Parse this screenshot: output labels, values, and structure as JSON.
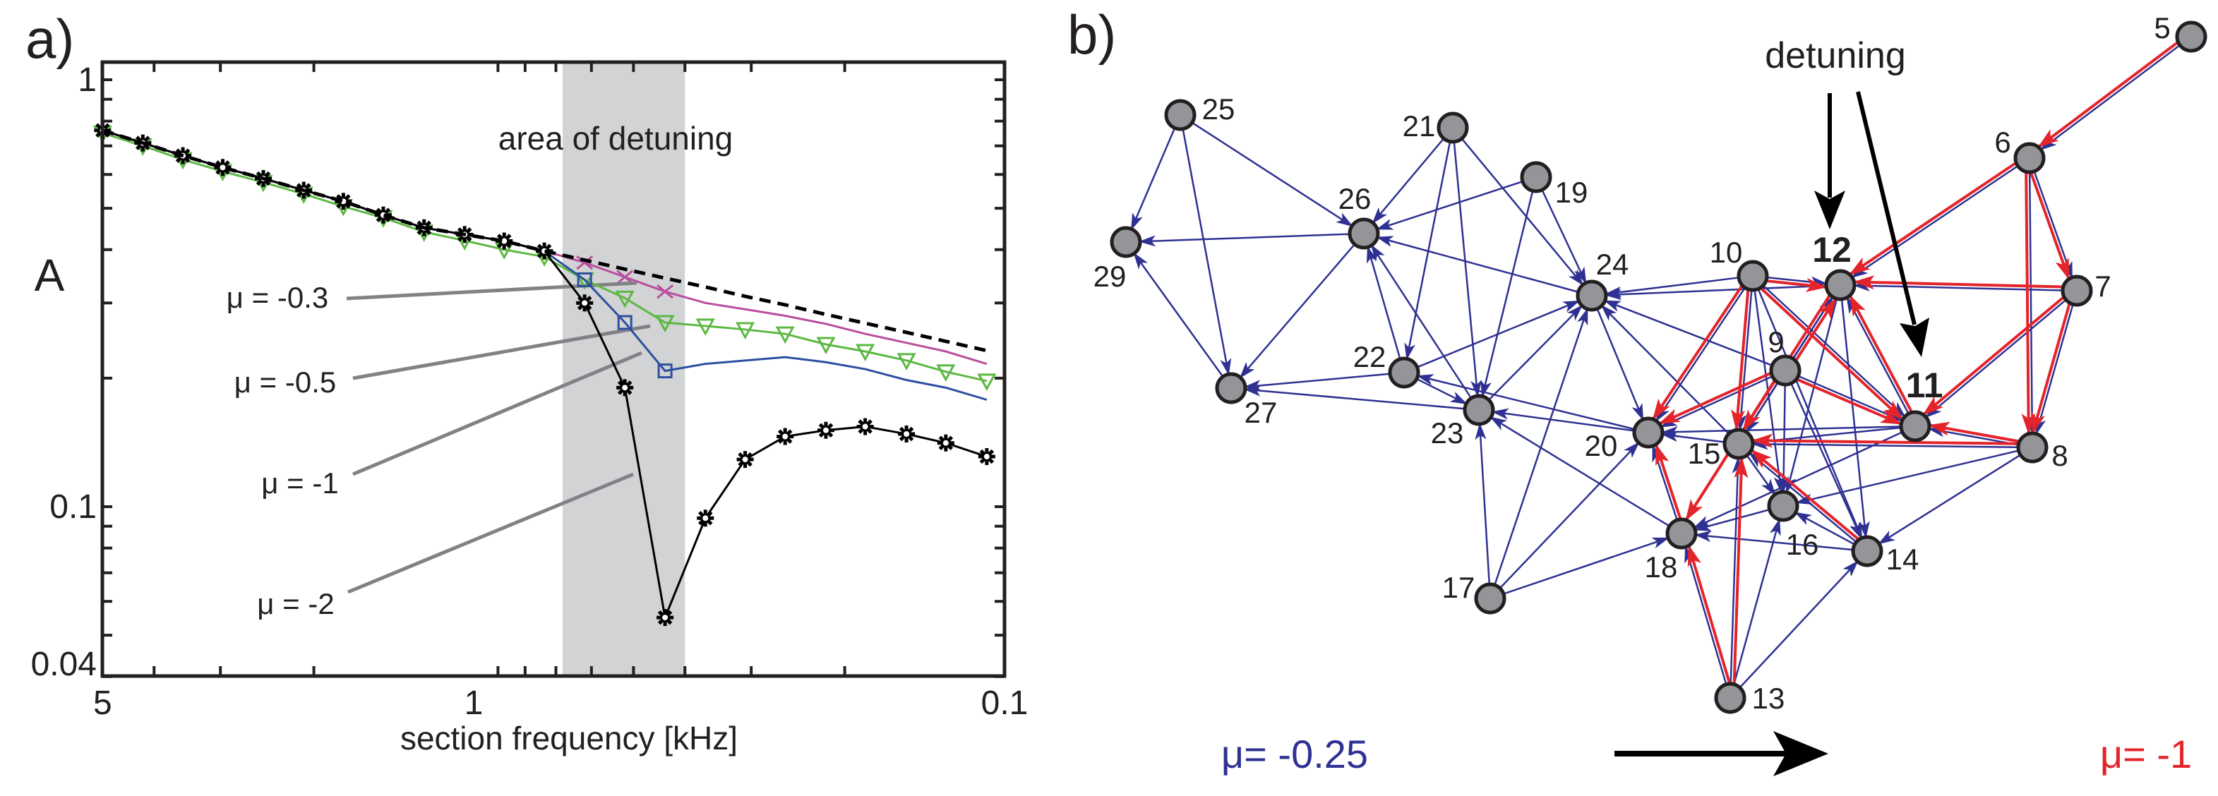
{
  "panels": {
    "a_label": "a)",
    "b_label": "b)"
  },
  "chart_data": {
    "type": "line",
    "title": "",
    "xlabel": "section frequency [kHz]",
    "ylabel": "A",
    "xscale": "log",
    "yscale": "log",
    "x_reversed": true,
    "xlim": [
      5,
      0.1
    ],
    "ylim": [
      0.04,
      1.1
    ],
    "grid": false,
    "xticks": [
      {
        "value": 5,
        "label": "5"
      },
      {
        "value": 1,
        "label": "1"
      },
      {
        "value": 0.1,
        "label": "0.1"
      }
    ],
    "yticks": [
      {
        "value": 1,
        "label": "1"
      },
      {
        "value": 0.1,
        "label": "0.1"
      },
      {
        "value": 0.04,
        "label": "0.04"
      }
    ],
    "shaded_region": {
      "from": 0.68,
      "to": 0.4,
      "label": "area of detuning",
      "color": "#d1d3d4"
    },
    "x": [
      5.0,
      4.2,
      3.53,
      2.97,
      2.49,
      2.09,
      1.76,
      1.48,
      1.24,
      1.04,
      0.876,
      0.736,
      0.618,
      0.519,
      0.436,
      0.366,
      0.308,
      0.259,
      0.217,
      0.183,
      0.153,
      0.129,
      0.108
    ],
    "series": [
      {
        "label": "μ = -0.3",
        "color": "#b94f9e",
        "marker": "x",
        "marker_indices": [
          12,
          13,
          14
        ],
        "values": [
          0.761,
          0.711,
          0.664,
          0.623,
          0.587,
          0.551,
          0.519,
          0.482,
          0.45,
          0.434,
          0.419,
          0.397,
          0.373,
          0.345,
          0.319,
          0.3,
          0.29,
          0.28,
          0.268,
          0.254,
          0.242,
          0.231,
          0.216
        ]
      },
      {
        "label": "μ = -0.5",
        "color": "#5db843",
        "marker": "triangle-down",
        "marker_indices": "all",
        "values": [
          0.75,
          0.7,
          0.65,
          0.61,
          0.575,
          0.54,
          0.505,
          0.475,
          0.44,
          0.42,
          0.4,
          0.385,
          0.34,
          0.308,
          0.27,
          0.265,
          0.26,
          0.254,
          0.24,
          0.231,
          0.22,
          0.207,
          0.197
        ]
      },
      {
        "label": "μ = -1",
        "color": "#2e4fa0",
        "marker": "square",
        "marker_indices": [
          12,
          13,
          14
        ],
        "values": [
          0.761,
          0.711,
          0.664,
          0.623,
          0.587,
          0.551,
          0.519,
          0.482,
          0.45,
          0.434,
          0.419,
          0.397,
          0.34,
          0.27,
          0.208,
          0.216,
          0.22,
          0.224,
          0.218,
          0.21,
          0.198,
          0.19,
          0.178
        ]
      },
      {
        "label": "μ = -2",
        "color": "#000000",
        "marker": "asterisk",
        "marker_indices": "all",
        "values": [
          0.761,
          0.711,
          0.664,
          0.623,
          0.587,
          0.551,
          0.519,
          0.482,
          0.45,
          0.434,
          0.419,
          0.397,
          0.3,
          0.19,
          0.055,
          0.094,
          0.129,
          0.146,
          0.151,
          0.154,
          0.148,
          0.141,
          0.131
        ]
      },
      {
        "label": "",
        "style": "dashed",
        "color": "#000000",
        "marker": "none",
        "values": [
          0.761,
          0.711,
          0.664,
          0.623,
          0.587,
          0.551,
          0.519,
          0.482,
          0.45,
          0.434,
          0.419,
          0.397,
          0.378,
          0.36,
          0.343,
          0.327,
          0.311,
          0.297,
          0.282,
          0.269,
          0.256,
          0.244,
          0.232
        ]
      }
    ]
  },
  "network": {
    "detuning_label": "detuning",
    "left_label": "μ= -0.25",
    "right_label": "μ= -1",
    "colors": {
      "weak": "#2e3192",
      "strong": "#e3242b",
      "node": "#939598"
    },
    "nodes": [
      {
        "id": "5",
        "label": "5"
      },
      {
        "id": "6",
        "label": "6"
      },
      {
        "id": "7",
        "label": "7"
      },
      {
        "id": "8",
        "label": "8"
      },
      {
        "id": "9",
        "label": "9"
      },
      {
        "id": "10",
        "label": "10"
      },
      {
        "id": "11",
        "label": "11",
        "bold": true
      },
      {
        "id": "12",
        "label": "12",
        "bold": true
      },
      {
        "id": "13",
        "label": "13"
      },
      {
        "id": "14",
        "label": "14"
      },
      {
        "id": "15",
        "label": "15"
      },
      {
        "id": "16",
        "label": "16"
      },
      {
        "id": "17",
        "label": "17"
      },
      {
        "id": "18",
        "label": "18"
      },
      {
        "id": "19",
        "label": "19"
      },
      {
        "id": "20",
        "label": "20"
      },
      {
        "id": "21",
        "label": "21"
      },
      {
        "id": "22",
        "label": "22"
      },
      {
        "id": "23",
        "label": "23"
      },
      {
        "id": "24",
        "label": "24"
      },
      {
        "id": "25",
        "label": "25"
      },
      {
        "id": "26",
        "label": "26"
      },
      {
        "id": "27",
        "label": "27"
      },
      {
        "id": "29",
        "label": "29"
      }
    ],
    "edges_mu_025": [
      [
        "5",
        "6"
      ],
      [
        "6",
        "12"
      ],
      [
        "6",
        "7"
      ],
      [
        "6",
        "8"
      ],
      [
        "7",
        "12"
      ],
      [
        "7",
        "8"
      ],
      [
        "7",
        "11"
      ],
      [
        "10",
        "12"
      ],
      [
        "10",
        "24"
      ],
      [
        "12",
        "24"
      ],
      [
        "10",
        "20"
      ],
      [
        "10",
        "15"
      ],
      [
        "10",
        "16"
      ],
      [
        "10",
        "14"
      ],
      [
        "10",
        "11"
      ],
      [
        "9",
        "12"
      ],
      [
        "9",
        "24"
      ],
      [
        "9",
        "20"
      ],
      [
        "9",
        "15"
      ],
      [
        "9",
        "16"
      ],
      [
        "9",
        "14"
      ],
      [
        "9",
        "11"
      ],
      [
        "12",
        "15"
      ],
      [
        "12",
        "16"
      ],
      [
        "12",
        "14"
      ],
      [
        "11",
        "12"
      ],
      [
        "11",
        "20"
      ],
      [
        "11",
        "15"
      ],
      [
        "11",
        "18"
      ],
      [
        "8",
        "11"
      ],
      [
        "8",
        "15"
      ],
      [
        "8",
        "16"
      ],
      [
        "8",
        "14"
      ],
      [
        "15",
        "20"
      ],
      [
        "15",
        "24"
      ],
      [
        "15",
        "16"
      ],
      [
        "16",
        "18"
      ],
      [
        "14",
        "16"
      ],
      [
        "14",
        "18"
      ],
      [
        "14",
        "15"
      ],
      [
        "13",
        "18"
      ],
      [
        "13",
        "15"
      ],
      [
        "13",
        "16"
      ],
      [
        "13",
        "14"
      ],
      [
        "18",
        "20"
      ],
      [
        "18",
        "23"
      ],
      [
        "17",
        "18"
      ],
      [
        "17",
        "20"
      ],
      [
        "17",
        "23"
      ],
      [
        "17",
        "24"
      ],
      [
        "20",
        "23"
      ],
      [
        "20",
        "22"
      ],
      [
        "24",
        "20"
      ],
      [
        "23",
        "24"
      ],
      [
        "22",
        "24"
      ],
      [
        "22",
        "23"
      ],
      [
        "22",
        "27"
      ],
      [
        "23",
        "27"
      ],
      [
        "23",
        "26"
      ],
      [
        "22",
        "26"
      ],
      [
        "24",
        "26"
      ],
      [
        "19",
        "26"
      ],
      [
        "19",
        "24"
      ],
      [
        "19",
        "23"
      ],
      [
        "21",
        "26"
      ],
      [
        "21",
        "22"
      ],
      [
        "21",
        "23"
      ],
      [
        "21",
        "24"
      ],
      [
        "25",
        "26"
      ],
      [
        "25",
        "29"
      ],
      [
        "25",
        "27"
      ],
      [
        "26",
        "29"
      ],
      [
        "26",
        "27"
      ],
      [
        "27",
        "29"
      ]
    ],
    "edges_mu_1": [
      [
        "5",
        "6"
      ],
      [
        "6",
        "12"
      ],
      [
        "6",
        "7"
      ],
      [
        "6",
        "8"
      ],
      [
        "7",
        "12"
      ],
      [
        "7",
        "8"
      ],
      [
        "7",
        "11"
      ],
      [
        "10",
        "12"
      ],
      [
        "10",
        "11"
      ],
      [
        "10",
        "20"
      ],
      [
        "10",
        "15"
      ],
      [
        "9",
        "20"
      ],
      [
        "9",
        "15"
      ],
      [
        "9",
        "11"
      ],
      [
        "9",
        "12"
      ],
      [
        "12",
        "15"
      ],
      [
        "11",
        "12"
      ],
      [
        "8",
        "11"
      ],
      [
        "8",
        "15"
      ],
      [
        "15",
        "18"
      ],
      [
        "9",
        "18"
      ],
      [
        "13",
        "18"
      ],
      [
        "13",
        "15"
      ],
      [
        "18",
        "20"
      ],
      [
        "14",
        "15"
      ]
    ]
  }
}
